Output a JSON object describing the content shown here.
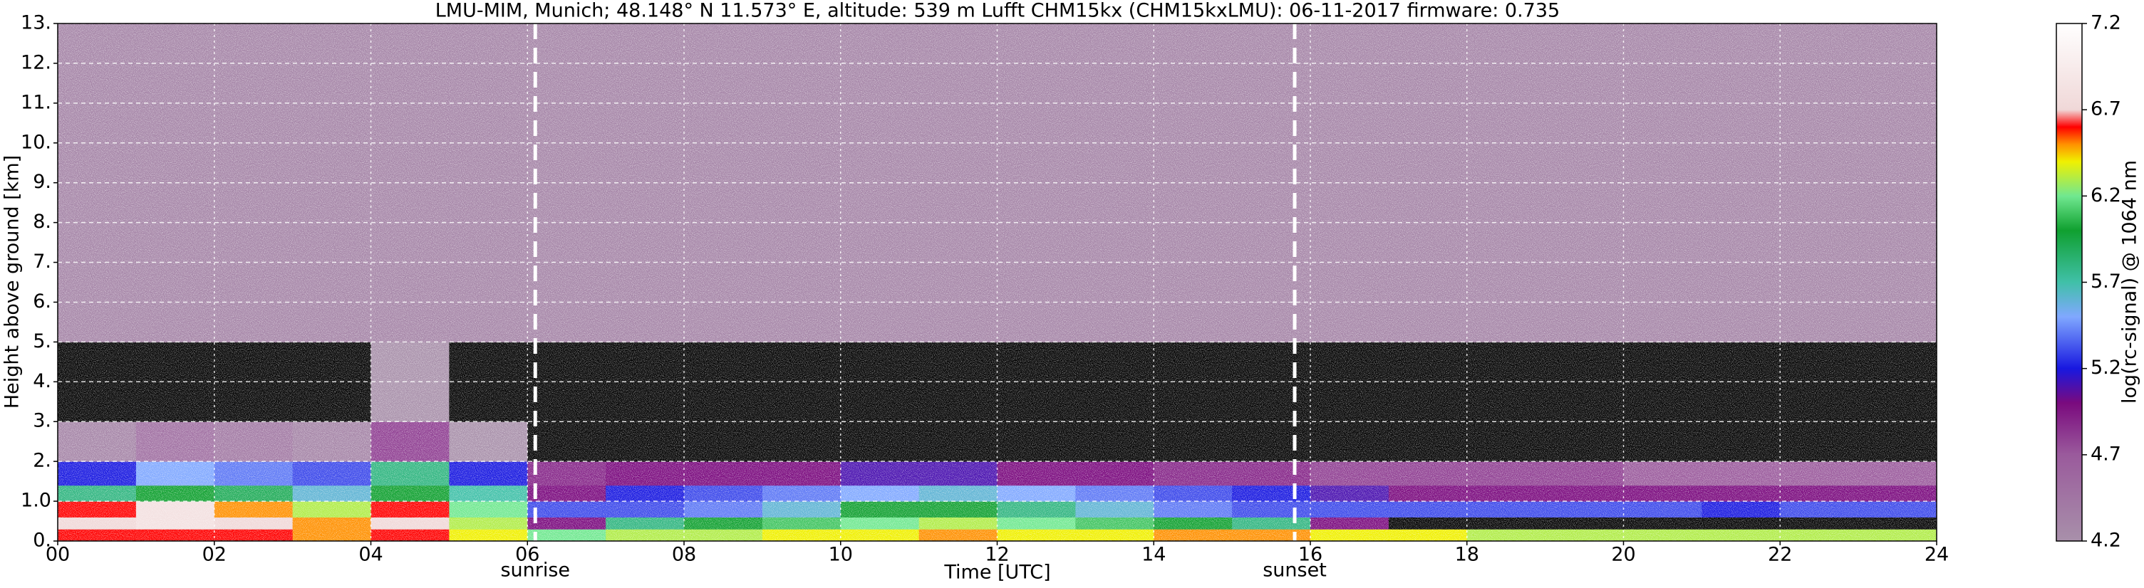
{
  "chart_data": {
    "type": "heatmap",
    "title": "LMU-MIM, Munich; 48.148° N 11.573° E, altitude: 539 m    Lufft CHM15kx (CHM15kxLMU): 06-11-2017    firmware: 0.735",
    "x_label": "Time [UTC]",
    "y_label": "Height above ground [km]",
    "colorbar_label": "log(rc-signal) @ 1064 nm",
    "xlim": [
      0,
      24
    ],
    "xticks": [
      {
        "value": 0,
        "label": "00"
      },
      {
        "value": 2,
        "label": "02"
      },
      {
        "value": 4,
        "label": "04"
      },
      {
        "value": 6,
        "label": "06"
      },
      {
        "value": 8,
        "label": "08"
      },
      {
        "value": 10,
        "label": "10"
      },
      {
        "value": 12,
        "label": "12"
      },
      {
        "value": 14,
        "label": "14"
      },
      {
        "value": 16,
        "label": "16"
      },
      {
        "value": 18,
        "label": "18"
      },
      {
        "value": 20,
        "label": "20"
      },
      {
        "value": 22,
        "label": "22"
      },
      {
        "value": 24,
        "label": "24"
      }
    ],
    "ylim": [
      0,
      13
    ],
    "yticks": [
      {
        "value": 0,
        "label": "0."
      },
      {
        "value": 1,
        "label": "1.0"
      },
      {
        "value": 2,
        "label": "2."
      },
      {
        "value": 3,
        "label": "3."
      },
      {
        "value": 4,
        "label": "4."
      },
      {
        "value": 5,
        "label": "5."
      },
      {
        "value": 6,
        "label": "6."
      },
      {
        "value": 7,
        "label": "7."
      },
      {
        "value": 8,
        "label": "8."
      },
      {
        "value": 9,
        "label": "9."
      },
      {
        "value": 10,
        "label": "10."
      },
      {
        "value": 11,
        "label": "11."
      },
      {
        "value": 12,
        "label": "12."
      },
      {
        "value": 13,
        "label": "13."
      }
    ],
    "grid": true,
    "clim": [
      4.2,
      7.2
    ],
    "cticks": [
      4.2,
      4.7,
      5.2,
      5.7,
      6.2,
      6.7,
      7.2
    ],
    "colormap": [
      [
        4.2,
        "#a890aa"
      ],
      [
        4.7,
        "#9a5a9c"
      ],
      [
        5.0,
        "#7a0a7e"
      ],
      [
        5.2,
        "#1818e0"
      ],
      [
        5.5,
        "#80a8ff"
      ],
      [
        5.7,
        "#40c0a8"
      ],
      [
        6.0,
        "#10a030"
      ],
      [
        6.2,
        "#70e890"
      ],
      [
        6.4,
        "#f0f000"
      ],
      [
        6.5,
        "#ff9000"
      ],
      [
        6.6,
        "#ff0000"
      ],
      [
        6.7,
        "#f0d8d8"
      ],
      [
        7.2,
        "#ffffff"
      ]
    ],
    "under_color": "#000000",
    "x_edges": [
      0,
      1,
      2,
      3,
      4,
      5,
      6,
      7,
      8,
      9,
      10,
      11,
      12,
      13,
      14,
      15,
      16,
      17,
      18,
      19,
      20,
      21,
      22,
      23,
      24
    ],
    "y_edges": [
      0,
      0.3,
      0.6,
      1.0,
      1.4,
      2.0,
      3.0,
      5.0,
      13
    ],
    "z": [
      [
        6.6,
        6.6,
        6.6,
        6.5,
        6.6,
        6.4,
        6.2,
        6.3,
        6.3,
        6.4,
        6.4,
        6.5,
        6.4,
        6.4,
        6.5,
        6.5,
        6.4,
        6.4,
        6.3,
        6.3,
        6.3,
        6.3,
        6.3,
        6.3
      ],
      [
        6.7,
        6.8,
        6.7,
        6.5,
        6.7,
        6.3,
        5.0,
        5.8,
        6.0,
        6.1,
        6.2,
        6.3,
        6.2,
        6.1,
        6.0,
        5.8,
        5.0,
        4.1,
        4.0,
        4.0,
        4.0,
        4.0,
        4.0,
        4.0
      ],
      [
        6.6,
        6.8,
        6.5,
        6.3,
        6.6,
        6.2,
        5.3,
        5.3,
        5.4,
        5.6,
        6.0,
        6.0,
        5.8,
        5.6,
        5.4,
        5.3,
        5.3,
        5.3,
        5.3,
        5.3,
        5.3,
        5.2,
        5.3,
        5.3
      ],
      [
        5.8,
        6.0,
        5.9,
        5.6,
        6.0,
        5.7,
        5.0,
        5.2,
        5.3,
        5.4,
        5.5,
        5.6,
        5.5,
        5.4,
        5.3,
        5.2,
        5.1,
        5.0,
        5.0,
        5.0,
        5.0,
        5.0,
        5.0,
        5.0
      ],
      [
        5.2,
        5.5,
        5.4,
        5.3,
        5.8,
        5.2,
        4.9,
        5.0,
        5.0,
        5.0,
        5.1,
        5.1,
        5.0,
        5.0,
        4.9,
        4.9,
        4.8,
        4.8,
        4.8,
        4.8,
        4.7,
        4.7,
        4.7,
        4.7
      ],
      [
        4.3,
        4.5,
        4.4,
        4.3,
        4.8,
        4.2,
        4.1,
        4.1,
        4.1,
        4.1,
        4.1,
        4.1,
        4.1,
        4.1,
        4.1,
        4.1,
        4.1,
        4.1,
        4.1,
        4.1,
        4.1,
        4.1,
        4.1,
        4.1
      ],
      [
        4.1,
        4.1,
        4.1,
        4.1,
        4.2,
        4.1,
        4.1,
        4.1,
        4.1,
        4.1,
        4.1,
        4.1,
        4.1,
        4.1,
        4.1,
        4.1,
        4.1,
        4.1,
        4.1,
        4.1,
        4.1,
        4.1,
        4.1,
        4.1
      ],
      [
        4.3,
        4.3,
        4.3,
        4.3,
        4.3,
        4.3,
        4.3,
        4.3,
        4.3,
        4.3,
        4.3,
        4.3,
        4.3,
        4.3,
        4.3,
        4.3,
        4.3,
        4.3,
        4.3,
        4.3,
        4.3,
        4.3,
        4.3,
        4.3
      ]
    ],
    "annotations": [
      {
        "text": "sunrise",
        "x": 6.1
      },
      {
        "text": "sunset",
        "x": 15.8
      }
    ]
  }
}
